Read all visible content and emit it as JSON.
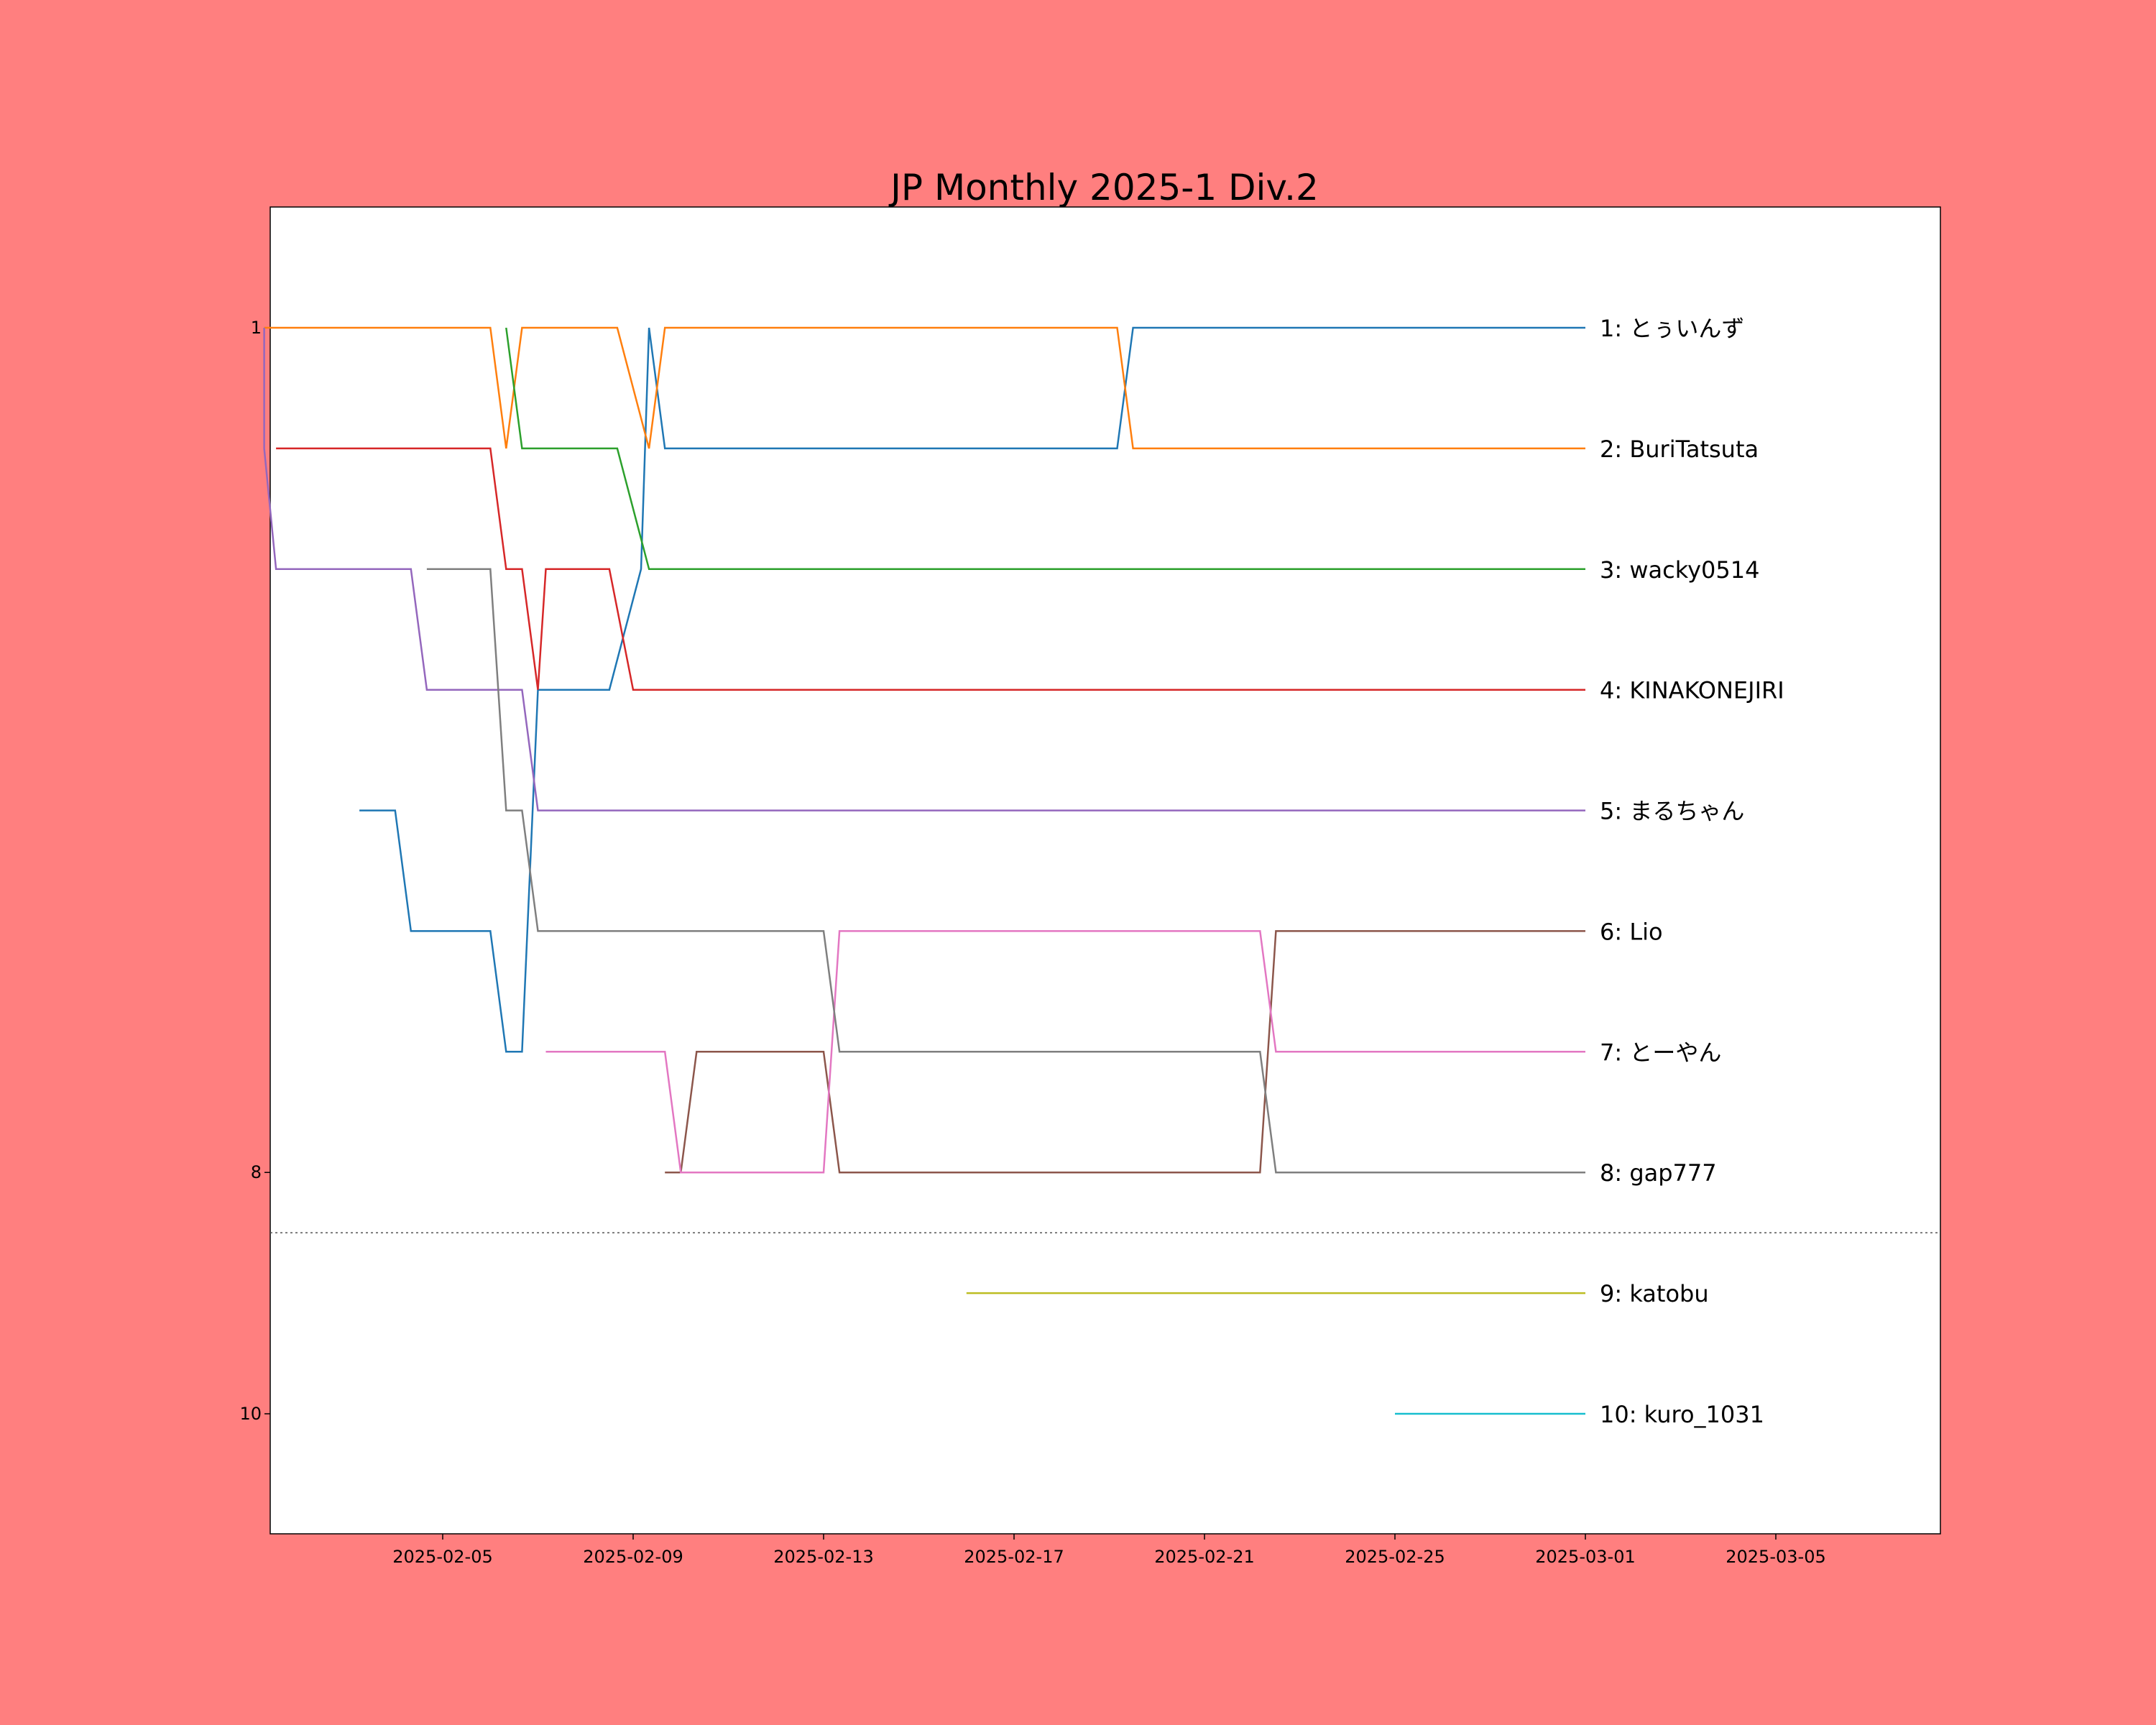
{
  "chart_data": {
    "type": "line",
    "title": "JP Monthly 2025-1 Div.2",
    "xlabel": "",
    "ylabel": "",
    "x_start": "2025-02-01",
    "xlim": [
      "2025-02-01",
      "2025-03-08"
    ],
    "ylim": [
      11,
      0
    ],
    "x_ticks": [
      "2025-02-05",
      "2025-02-09",
      "2025-02-13",
      "2025-02-17",
      "2025-02-21",
      "2025-02-25",
      "2025-03-01",
      "2025-03-05"
    ],
    "y_ticks": [
      1,
      8,
      10
    ],
    "grid": false,
    "legend": "none",
    "cutoff_line": 8.5,
    "series": [
      {
        "name": "1: とぅいんず",
        "color": "#1f77b4",
        "points": [
          [
            "2025-02-03 06:00",
            5
          ],
          [
            "2025-02-04 00:00",
            5
          ],
          [
            "2025-02-04 08:00",
            6
          ],
          [
            "2025-02-06 00:00",
            6
          ],
          [
            "2025-02-06 08:00",
            7
          ],
          [
            "2025-02-06 16:00",
            7
          ],
          [
            "2025-02-07 00:00",
            4
          ],
          [
            "2025-02-08 12:00",
            4
          ],
          [
            "2025-02-09 04:00",
            3
          ],
          [
            "2025-02-09 08:00",
            1
          ],
          [
            "2025-02-09 16:00",
            2
          ],
          [
            "2025-02-19 04:00",
            2
          ],
          [
            "2025-02-19 12:00",
            1
          ],
          [
            "2025-03-01 00:00",
            1
          ]
        ]
      },
      {
        "name": "2: BuriTatsuta",
        "color": "#ff7f0e",
        "points": [
          [
            "2025-02-01 06:00",
            1
          ],
          [
            "2025-02-06 00:00",
            1
          ],
          [
            "2025-02-06 08:00",
            2
          ],
          [
            "2025-02-06 16:00",
            1
          ],
          [
            "2025-02-08 16:00",
            1
          ],
          [
            "2025-02-09 08:00",
            2
          ],
          [
            "2025-02-09 16:00",
            1
          ],
          [
            "2025-02-19 04:00",
            1
          ],
          [
            "2025-02-19 12:00",
            2
          ],
          [
            "2025-03-01 00:00",
            2
          ]
        ]
      },
      {
        "name": "3: wacky0514",
        "color": "#2ca02c",
        "points": [
          [
            "2025-02-06 08:00",
            1
          ],
          [
            "2025-02-06 16:00",
            2
          ],
          [
            "2025-02-08 16:00",
            2
          ],
          [
            "2025-02-09 08:00",
            3
          ],
          [
            "2025-03-01 00:00",
            3
          ]
        ]
      },
      {
        "name": "4: KINAKONEJIRI",
        "color": "#d62728",
        "points": [
          [
            "2025-02-01 12:00",
            2
          ],
          [
            "2025-02-06 00:00",
            2
          ],
          [
            "2025-02-06 08:00",
            3
          ],
          [
            "2025-02-06 16:00",
            3
          ],
          [
            "2025-02-07 00:00",
            4
          ],
          [
            "2025-02-07 04:00",
            3
          ],
          [
            "2025-02-08 12:00",
            3
          ],
          [
            "2025-02-09 00:00",
            4
          ],
          [
            "2025-03-01 00:00",
            4
          ]
        ]
      },
      {
        "name": "5: まるちゃん",
        "color": "#9467bd",
        "points": [
          [
            "2025-02-01 06:00",
            1
          ],
          [
            "2025-02-01 06:00",
            2
          ],
          [
            "2025-02-01 12:00",
            3
          ],
          [
            "2025-02-04 08:00",
            3
          ],
          [
            "2025-02-04 16:00",
            4
          ],
          [
            "2025-02-06 16:00",
            4
          ],
          [
            "2025-02-07 00:00",
            5
          ],
          [
            "2025-03-01 00:00",
            5
          ]
        ]
      },
      {
        "name": "6: Lio",
        "color": "#8c564b",
        "points": [
          [
            "2025-02-09 16:00",
            8
          ],
          [
            "2025-02-10 00:00",
            8
          ],
          [
            "2025-02-10 08:00",
            7
          ],
          [
            "2025-02-13 00:00",
            7
          ],
          [
            "2025-02-13 08:00",
            8
          ],
          [
            "2025-02-22 04:00",
            8
          ],
          [
            "2025-02-22 12:00",
            6
          ],
          [
            "2025-03-01 00:00",
            6
          ]
        ]
      },
      {
        "name": "7: とーやん",
        "color": "#e377c2",
        "points": [
          [
            "2025-02-07 04:00",
            7
          ],
          [
            "2025-02-09 16:00",
            7
          ],
          [
            "2025-02-10 00:00",
            8
          ],
          [
            "2025-02-13 00:00",
            8
          ],
          [
            "2025-02-13 08:00",
            6
          ],
          [
            "2025-02-22 04:00",
            6
          ],
          [
            "2025-02-22 12:00",
            7
          ],
          [
            "2025-03-01 00:00",
            7
          ]
        ]
      },
      {
        "name": "8: gap777",
        "color": "#7f7f7f",
        "points": [
          [
            "2025-02-04 16:00",
            3
          ],
          [
            "2025-02-06 00:00",
            3
          ],
          [
            "2025-02-06 08:00",
            5
          ],
          [
            "2025-02-06 16:00",
            5
          ],
          [
            "2025-02-07 00:00",
            6
          ],
          [
            "2025-02-13 00:00",
            6
          ],
          [
            "2025-02-13 08:00",
            7
          ],
          [
            "2025-02-22 04:00",
            7
          ],
          [
            "2025-02-22 12:00",
            8
          ],
          [
            "2025-03-01 00:00",
            8
          ]
        ]
      },
      {
        "name": "9: katobu",
        "color": "#bcbd22",
        "points": [
          [
            "2025-02-16 00:00",
            9
          ],
          [
            "2025-03-01 00:00",
            9
          ]
        ]
      },
      {
        "name": "10: kuro_1031",
        "color": "#17becf",
        "points": [
          [
            "2025-02-25 00:00",
            10
          ],
          [
            "2025-03-01 00:00",
            10
          ]
        ]
      }
    ]
  }
}
